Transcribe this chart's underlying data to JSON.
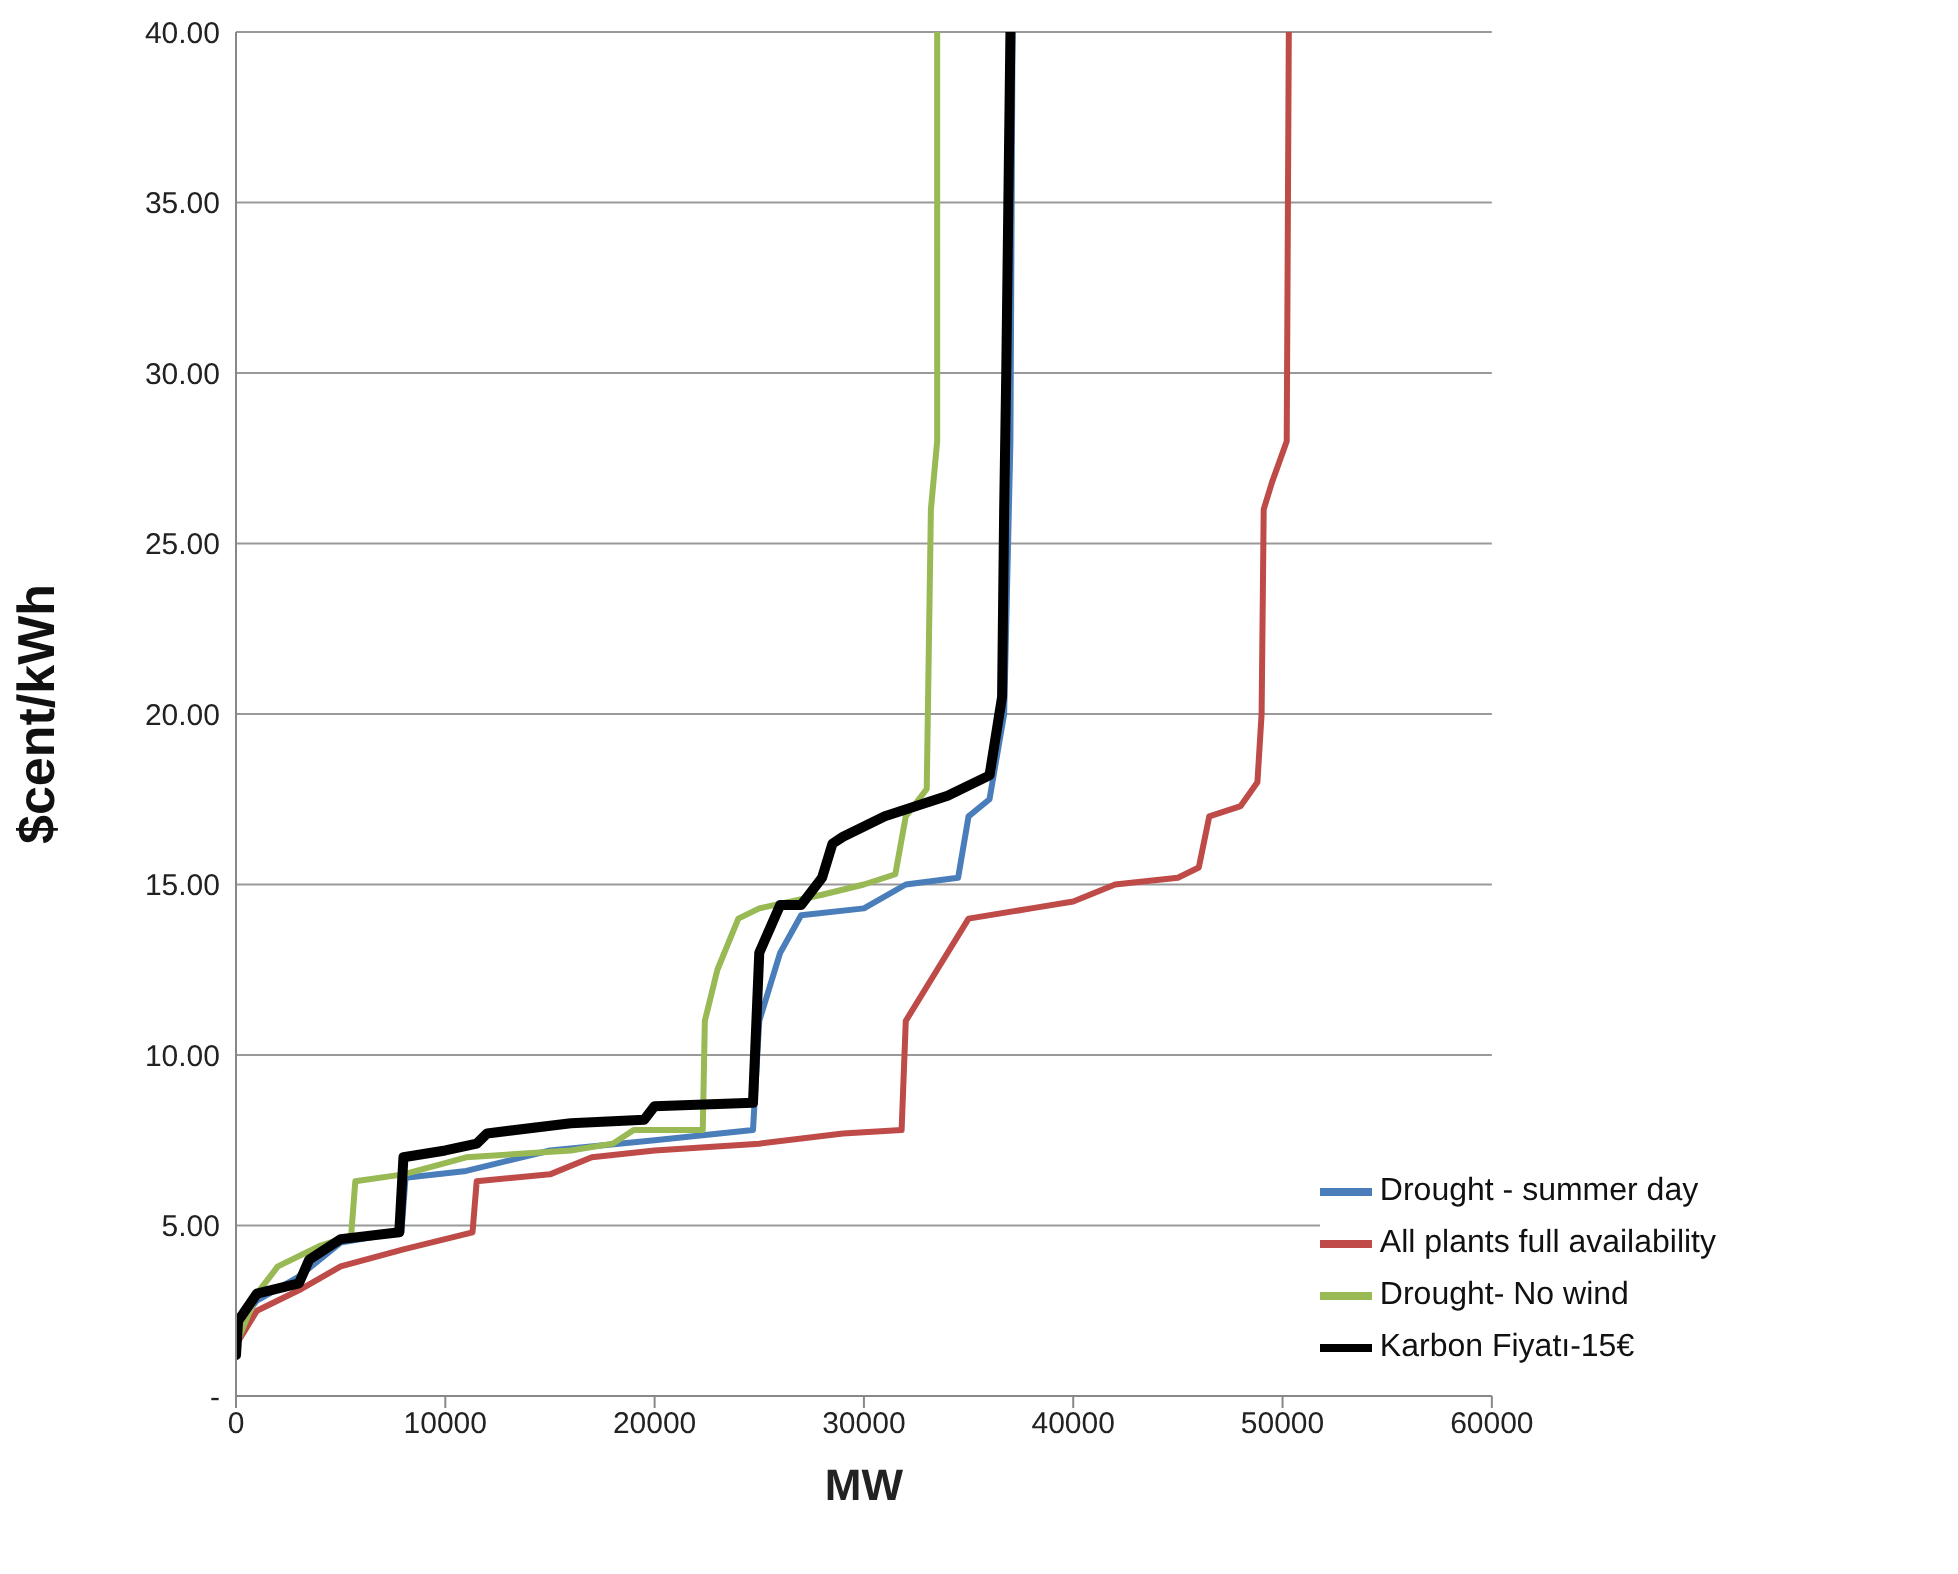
{
  "chart_data": {
    "type": "line",
    "xlabel": "MW",
    "ylabel": "$cent/kWh",
    "xlim": [
      0,
      60000
    ],
    "xticks": [
      0,
      10000,
      20000,
      30000,
      40000,
      50000,
      60000
    ],
    "ylim": [
      0,
      40
    ],
    "yticks": [
      {
        "value": 0,
        "label": "-"
      },
      {
        "value": 5,
        "label": "5.00"
      },
      {
        "value": 10,
        "label": "10.00"
      },
      {
        "value": 15,
        "label": "15.00"
      },
      {
        "value": 20,
        "label": "20.00"
      },
      {
        "value": 25,
        "label": "25.00"
      },
      {
        "value": 30,
        "label": "30.00"
      },
      {
        "value": 35,
        "label": "35.00"
      },
      {
        "value": 40,
        "label": "40.00"
      }
    ],
    "grid": "y",
    "legend": "bottom right",
    "marker": "none",
    "line_style": "solid",
    "series": [
      {
        "name": "Drought - summer day",
        "color": "#4a7ebb",
        "x": [
          0,
          1000,
          3000,
          5000,
          7900,
          8100,
          11000,
          15000,
          20000,
          24700,
          25000,
          26000,
          27000,
          30000,
          32000,
          34500,
          35000,
          36000,
          36700,
          37000,
          37100
        ],
        "values": [
          2,
          2.8,
          3.5,
          4.5,
          4.8,
          6.4,
          6.6,
          7.2,
          7.5,
          7.8,
          11,
          13,
          14.1,
          14.3,
          15,
          15.2,
          17,
          17.5,
          20,
          28,
          40
        ]
      },
      {
        "name": "All plants full availability",
        "color": "#be4b48",
        "x": [
          0,
          1000,
          3000,
          5000,
          8000,
          11300,
          11500,
          15000,
          17000,
          20000,
          25000,
          29000,
          31800,
          32000,
          32500,
          33500,
          35000,
          38000,
          40000,
          42000,
          45000,
          46000,
          46500,
          48000,
          48800,
          49000,
          49100,
          49500,
          50200,
          50300
        ],
        "values": [
          1.5,
          2.5,
          3.1,
          3.8,
          4.3,
          4.8,
          6.3,
          6.5,
          7,
          7.2,
          7.4,
          7.7,
          7.8,
          11,
          11.5,
          12.5,
          14,
          14.3,
          14.5,
          15,
          15.2,
          15.5,
          17,
          17.3,
          18,
          20,
          26,
          26.8,
          28,
          40
        ]
      },
      {
        "name": "Drought- No wind",
        "color": "#98b954",
        "x": [
          0,
          1000,
          2000,
          4000,
          5500,
          5700,
          8000,
          11000,
          16000,
          18000,
          19000,
          22300,
          22400,
          23000,
          24000,
          25000,
          28000,
          30000,
          31500,
          32000,
          33000,
          33200,
          33500,
          33500
        ],
        "values": [
          1.5,
          3,
          3.8,
          4.4,
          4.7,
          6.3,
          6.5,
          7,
          7.2,
          7.4,
          7.8,
          7.8,
          11,
          12.5,
          14,
          14.3,
          14.7,
          15,
          15.3,
          17,
          17.8,
          26,
          28,
          40
        ]
      },
      {
        "name": "Karbon Fiyatı-15€",
        "color": "#000000",
        "x": [
          0,
          100,
          1000,
          3000,
          3500,
          5000,
          7800,
          8000,
          10000,
          11500,
          12000,
          16000,
          19500,
          20000,
          24700,
          25000,
          26000,
          27000,
          28000,
          28500,
          29000,
          31000,
          34000,
          36000,
          36600,
          36700,
          36800,
          37000
        ],
        "values": [
          1.2,
          2.2,
          3,
          3.3,
          4,
          4.6,
          4.8,
          7,
          7.2,
          7.4,
          7.7,
          8,
          8.1,
          8.5,
          8.6,
          13,
          14.4,
          14.4,
          15.2,
          16.2,
          16.4,
          17,
          17.6,
          18.2,
          20.5,
          26,
          30,
          40
        ]
      }
    ]
  }
}
